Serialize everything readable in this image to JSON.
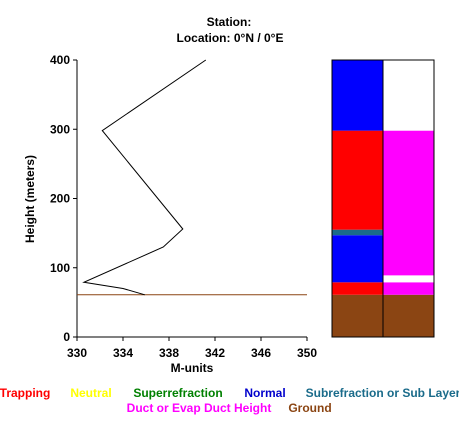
{
  "header": {
    "station_line": "Station:",
    "location_line": "Location:  0°N /  0°E"
  },
  "chart_data": {
    "type": "line",
    "xlabel": "M-units",
    "ylabel": "Height (meters)",
    "xlim": [
      330,
      350
    ],
    "ylim": [
      0,
      400
    ],
    "xticks": [
      330,
      334,
      338,
      342,
      346,
      350
    ],
    "yticks": [
      0,
      100,
      200,
      300,
      400
    ],
    "series": [
      {
        "x": [
          341.2,
          332.2,
          339.2,
          337.5,
          330.6,
          334.0,
          335.9
        ],
        "y": [
          400,
          298,
          156,
          130,
          79,
          70,
          61
        ],
        "color": "#000000"
      }
    ],
    "ground_height": 61,
    "ground_line_color": "#8b4513",
    "layer_columns": [
      {
        "segments": [
          {
            "from": 0,
            "to": 61,
            "color": "#8b4513"
          },
          {
            "from": 61,
            "to": 79,
            "color": "#ff0000"
          },
          {
            "from": 79,
            "to": 147,
            "color": "#0000ff"
          },
          {
            "from": 147,
            "to": 155,
            "color": "#1a6b8a"
          },
          {
            "from": 155,
            "to": 298,
            "color": "#ff0000"
          },
          {
            "from": 298,
            "to": 400,
            "color": "#0000ff"
          }
        ]
      },
      {
        "segments": [
          {
            "from": 0,
            "to": 61,
            "color": "#8b4513"
          },
          {
            "from": 61,
            "to": 79,
            "color": "#ff00ff"
          },
          {
            "from": 79,
            "to": 89,
            "color": "#ffffff"
          },
          {
            "from": 89,
            "to": 298,
            "color": "#ff00ff"
          },
          {
            "from": 298,
            "to": 400,
            "color": "#ffffff"
          }
        ]
      }
    ]
  },
  "legend": {
    "row1": [
      {
        "label": "Trapping",
        "color": "#ff0000"
      },
      {
        "label": "Neutral",
        "color": "#ffff00"
      },
      {
        "label": "Superrefraction",
        "color": "#008000"
      },
      {
        "label": "Normal",
        "color": "#0000cc"
      },
      {
        "label": "Subrefraction or Sub Layer",
        "color": "#1a6b8a"
      }
    ],
    "row2": [
      {
        "label": "Duct or Evap Duct Height",
        "color": "#ff00ff"
      },
      {
        "label": "Ground",
        "color": "#8b4513"
      }
    ]
  }
}
